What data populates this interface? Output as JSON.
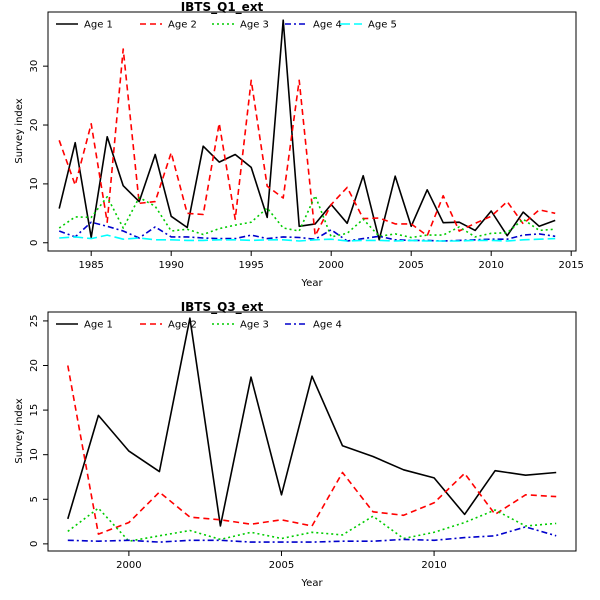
{
  "chart_data": [
    {
      "type": "line",
      "title": "IBTS_Q1_ext",
      "xlabel": "Year",
      "ylabel": "Survey index",
      "xlim": [
        1982.3,
        2015.3
      ],
      "ylim": [
        -1.4,
        39.2
      ],
      "x_ticks": [
        1985,
        1990,
        1995,
        2000,
        2005,
        2010,
        2015
      ],
      "y_ticks": [
        0,
        10,
        20,
        30
      ],
      "legend_position": "top",
      "grid": false,
      "x": [
        1983,
        1984,
        1985,
        1986,
        1987,
        1988,
        1989,
        1990,
        1991,
        1992,
        1993,
        1994,
        1995,
        1996,
        1997,
        1998,
        1999,
        2000,
        2001,
        2002,
        2003,
        2004,
        2005,
        2006,
        2007,
        2008,
        2009,
        2010,
        2011,
        2012,
        2013,
        2014
      ],
      "series": [
        {
          "name": "Age 1",
          "color": "#000000",
          "dash": "solid",
          "values": [
            5.8,
            17.0,
            0.9,
            18.0,
            9.7,
            7.0,
            15.0,
            4.5,
            2.6,
            16.4,
            13.7,
            15.0,
            12.8,
            4.3,
            37.8,
            2.8,
            3.2,
            6.5,
            3.3,
            11.4,
            0.5,
            11.3,
            2.8,
            9.0,
            3.4,
            3.5,
            2.1,
            5.4,
            1.2,
            5.2,
            2.8,
            3.8
          ]
        },
        {
          "name": "Age 2",
          "color": "#ff0000",
          "dash": "dashed",
          "values": [
            17.4,
            9.8,
            20.2,
            3.5,
            32.9,
            6.7,
            7.0,
            15.3,
            5.0,
            4.8,
            20.3,
            4.0,
            27.6,
            9.6,
            7.6,
            27.6,
            1.2,
            6.5,
            9.4,
            4.1,
            4.2,
            3.2,
            3.2,
            1.2,
            8.0,
            2.0,
            3.3,
            4.5,
            7.0,
            3.2,
            5.6,
            5.0
          ]
        },
        {
          "name": "Age 3",
          "color": "#00cc00",
          "dash": "dotted",
          "values": [
            2.5,
            4.4,
            4.3,
            7.8,
            2.5,
            7.7,
            6.2,
            2.0,
            2.3,
            1.4,
            2.4,
            3.0,
            3.5,
            5.9,
            2.5,
            2.0,
            8.0,
            1.0,
            1.6,
            4.0,
            1.1,
            1.5,
            0.9,
            1.3,
            1.3,
            2.7,
            1.0,
            1.6,
            1.7,
            4.0,
            2.1,
            2.3
          ]
        },
        {
          "name": "Age 4",
          "color": "#0000cc",
          "dash": "dashdot",
          "values": [
            2.0,
            1.0,
            3.5,
            2.8,
            2.0,
            0.8,
            2.7,
            1.0,
            1.0,
            0.8,
            0.7,
            0.7,
            1.3,
            0.7,
            1.0,
            0.9,
            0.6,
            2.2,
            0.3,
            0.7,
            1.1,
            0.5,
            0.4,
            0.4,
            0.3,
            0.4,
            0.5,
            0.6,
            0.6,
            1.3,
            1.5,
            1.1
          ]
        },
        {
          "name": "Age 5",
          "color": "#00ffff",
          "dash": "longdash",
          "values": [
            0.8,
            1.0,
            0.7,
            1.3,
            0.6,
            0.8,
            0.5,
            0.5,
            0.4,
            0.4,
            0.5,
            0.5,
            0.4,
            0.5,
            0.5,
            0.3,
            0.5,
            0.6,
            0.3,
            0.4,
            0.4,
            0.3,
            0.4,
            0.3,
            0.3,
            0.3,
            0.4,
            0.4,
            0.3,
            0.5,
            0.6,
            0.7
          ]
        }
      ]
    },
    {
      "type": "line",
      "title": "IBTS_Q3_ext",
      "xlabel": "Year",
      "ylabel": "Survey index",
      "xlim": [
        1997.35,
        2014.65
      ],
      "ylim": [
        -0.8,
        26.0
      ],
      "x_ticks": [
        2000,
        2005,
        2010
      ],
      "y_ticks": [
        0,
        5,
        10,
        15,
        20,
        25
      ],
      "legend_position": "top",
      "grid": false,
      "x": [
        1998,
        1999,
        2000,
        2001,
        2002,
        2003,
        2004,
        2005,
        2006,
        2007,
        2008,
        2009,
        2010,
        2011,
        2012,
        2013,
        2014
      ],
      "series": [
        {
          "name": "Age 1",
          "color": "#000000",
          "dash": "solid",
          "values": [
            2.8,
            14.4,
            10.4,
            8.1,
            25.3,
            2.0,
            18.7,
            5.5,
            18.8,
            11.0,
            9.8,
            8.3,
            7.4,
            3.3,
            8.2,
            7.7,
            8.0
          ]
        },
        {
          "name": "Age 2",
          "color": "#ff0000",
          "dash": "dashed",
          "values": [
            20.0,
            1.1,
            2.4,
            5.8,
            3.0,
            2.7,
            2.2,
            2.7,
            2.0,
            8.0,
            3.6,
            3.2,
            4.6,
            7.9,
            3.3,
            5.5,
            5.3
          ]
        },
        {
          "name": "Age 3",
          "color": "#00cc00",
          "dash": "dotted",
          "values": [
            1.4,
            4.0,
            0.3,
            0.9,
            1.5,
            0.5,
            1.3,
            0.6,
            1.3,
            1.0,
            3.1,
            0.6,
            1.3,
            2.4,
            3.8,
            2.0,
            2.3
          ]
        },
        {
          "name": "Age 4",
          "color": "#0000cc",
          "dash": "dashdot",
          "values": [
            0.4,
            0.3,
            0.4,
            0.2,
            0.4,
            0.4,
            0.2,
            0.2,
            0.2,
            0.3,
            0.3,
            0.5,
            0.4,
            0.7,
            0.9,
            1.9,
            0.9
          ]
        }
      ]
    }
  ]
}
